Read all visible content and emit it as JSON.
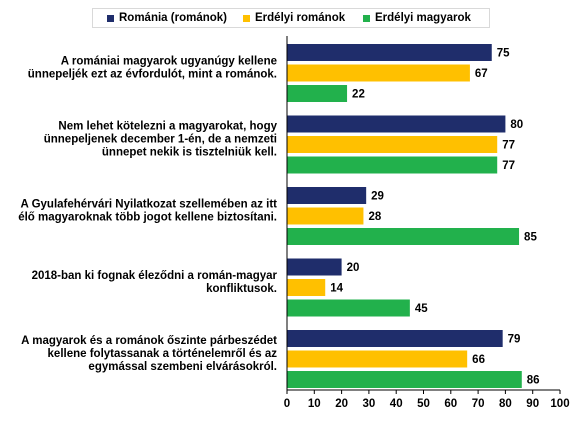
{
  "chart_data": {
    "type": "bar",
    "orientation": "horizontal",
    "categories": [
      [
        "A romániai magyarok ugyanúgy kellene",
        "ünnepeljék ezt az évfordulót, mint a románok."
      ],
      [
        "Nem lehet kötelezni a magyarokat, hogy",
        "ünnepeljenek december 1-én, de a nemzeti",
        "ünnepet nekik is tisztelniük kell."
      ],
      [
        "A Gyulafehérvári Nyilatkozat szellemében az itt",
        "élő magyaroknak több jogot kellene biztosítani."
      ],
      [
        "2018-ban ki fognak éleződni a román-magyar",
        "konfliktusok."
      ],
      [
        "A magyarok és a románok őszinte párbeszédet",
        "kellene folytassanak a történelemről és az",
        "egymással szembeni elvárásokról."
      ]
    ],
    "series": [
      {
        "name": "Románia (románok)",
        "color": "#1f2d6b",
        "values": [
          75,
          80,
          29,
          20,
          79
        ]
      },
      {
        "name": "Erdélyi románok",
        "color": "#ffc000",
        "values": [
          67,
          77,
          28,
          14,
          66
        ]
      },
      {
        "name": "Erdélyi magyarok",
        "color": "#22b14c",
        "values": [
          22,
          77,
          85,
          45,
          86
        ]
      }
    ],
    "xlim": [
      0,
      100
    ],
    "xticks": [
      0,
      10,
      20,
      30,
      40,
      50,
      60,
      70,
      80,
      90,
      100
    ],
    "grid": false,
    "legend_position": "top"
  }
}
